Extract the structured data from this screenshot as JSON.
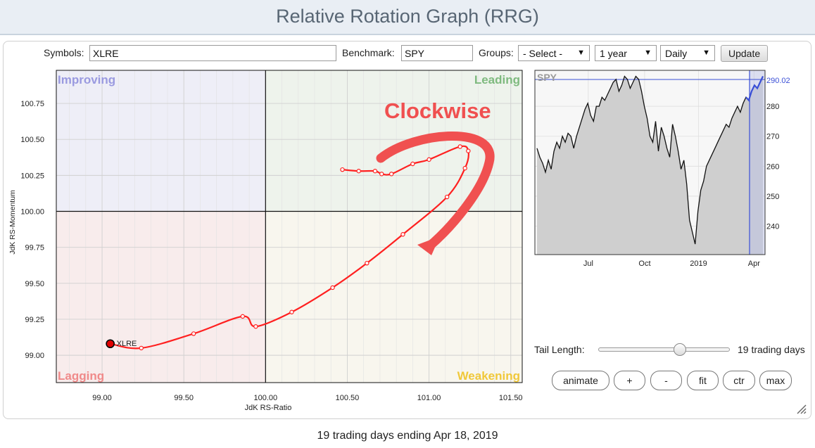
{
  "header": {
    "title": "Relative Rotation Graph (RRG)"
  },
  "toolbar": {
    "symbols_label": "Symbols:",
    "symbols_value": "XLRE",
    "benchmark_label": "Benchmark:",
    "benchmark_value": "SPY",
    "groups_label": "Groups:",
    "groups_value": "- Select -",
    "period_value": "1 year",
    "interval_value": "Daily",
    "update_label": "Update"
  },
  "colors": {
    "improving_bg": "#eeeef7",
    "leading_bg": "#eef3ec",
    "lagging_bg": "#f8ecec",
    "weakening_bg": "#f8f6ee",
    "improving_text": "#9a9ae0",
    "leading_text": "#7fba7f",
    "lagging_text": "#f08a8a",
    "weakening_text": "#f0c83a",
    "tail": "#ff2020",
    "annotation": "#f05050",
    "spy_line": "#111111",
    "spy_recent": "#3a4fd6"
  },
  "rrg": {
    "quadrants": {
      "improving": "Improving",
      "leading": "Leading",
      "lagging": "Lagging",
      "weakening": "Weakening"
    },
    "annotation": "Clockwise",
    "symbol_label": "XLRE",
    "x_axis": {
      "label": "JdK RS-Ratio",
      "min": 98.72,
      "max": 101.57,
      "ticks": [
        "99.00",
        "99.50",
        "100.00",
        "100.50",
        "101.00",
        "101.50"
      ]
    },
    "y_axis": {
      "label": "JdK RS-Momentum",
      "min": 98.81,
      "max": 100.98,
      "ticks": [
        "99.00",
        "99.25",
        "99.50",
        "99.75",
        "100.00",
        "100.25",
        "100.50",
        "100.75"
      ]
    }
  },
  "chart_data": [
    {
      "type": "scatter",
      "title": "",
      "xlabel": "JdK RS-Ratio",
      "ylabel": "JdK RS-Momentum",
      "xlim": [
        98.72,
        101.57
      ],
      "ylim": [
        98.81,
        100.98
      ],
      "series": [
        {
          "name": "XLRE",
          "points": [
            [
              100.47,
              100.29
            ],
            [
              100.57,
              100.28
            ],
            [
              100.67,
              100.28
            ],
            [
              100.71,
              100.26
            ],
            [
              100.77,
              100.26
            ],
            [
              100.9,
              100.33
            ],
            [
              101.0,
              100.36
            ],
            [
              101.19,
              100.45
            ],
            [
              101.24,
              100.42
            ],
            [
              101.22,
              100.3
            ],
            [
              101.11,
              100.1
            ],
            [
              100.84,
              99.84
            ],
            [
              100.62,
              99.64
            ],
            [
              100.41,
              99.47
            ],
            [
              100.16,
              99.3
            ],
            [
              99.94,
              99.2
            ],
            [
              99.86,
              99.27
            ],
            [
              99.56,
              99.15
            ],
            [
              99.24,
              99.05
            ],
            [
              99.05,
              99.08
            ]
          ]
        }
      ]
    },
    {
      "type": "line",
      "title": "SPY",
      "xlabel": "",
      "ylabel": "",
      "ylim": [
        230.5,
        292.0
      ],
      "x_ticks": [
        "Jul",
        "Oct",
        "2019",
        "Apr"
      ],
      "y_ticks": [
        240,
        250,
        260,
        270,
        280
      ],
      "last_value_label": "290.02",
      "series": [
        {
          "name": "SPY",
          "values": [
            266,
            263,
            261,
            258,
            262,
            259,
            265,
            268,
            266,
            270,
            268,
            271,
            270,
            266,
            270,
            273,
            276,
            279,
            281,
            277,
            275,
            280,
            280,
            283,
            282,
            284,
            286,
            288,
            289,
            285,
            287,
            290,
            289,
            286,
            288,
            290,
            289,
            285,
            280,
            276,
            270,
            268,
            275,
            265,
            273,
            270,
            266,
            263,
            274,
            270,
            265,
            259,
            262,
            254,
            242,
            238,
            234,
            245,
            252,
            255,
            260,
            262,
            264,
            266,
            268,
            270,
            272,
            274,
            273,
            276,
            278,
            280,
            278,
            281,
            283,
            282,
            285,
            287,
            286,
            288,
            290
          ]
        }
      ]
    }
  ],
  "controls": {
    "tail_length_label": "Tail Length:",
    "tail_length_value": "19 trading days",
    "tail_length_fraction": 0.62,
    "buttons": {
      "animate": "animate",
      "plus": "+",
      "minus": "-",
      "fit": "fit",
      "ctr": "ctr",
      "max": "max"
    }
  },
  "footer": {
    "text": "19 trading days ending Apr 18, 2019"
  }
}
